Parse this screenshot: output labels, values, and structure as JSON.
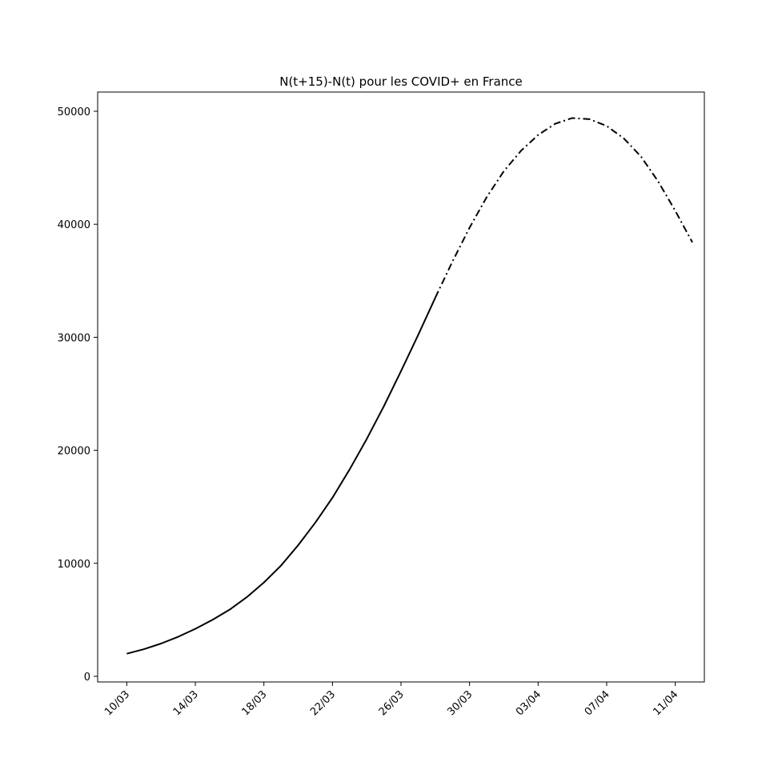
{
  "chart_data": {
    "type": "line",
    "title": "N(t+15)-N(t) pour les COVID+ en France",
    "xlabel": "",
    "ylabel": "",
    "x_tick_labels": [
      "10/03",
      "14/03",
      "18/03",
      "22/03",
      "26/03",
      "30/03",
      "03/04",
      "07/04",
      "11/04"
    ],
    "y_ticks": [
      0,
      10000,
      20000,
      30000,
      40000,
      50000
    ],
    "ylim": [
      -500,
      51700
    ],
    "xlim": [
      "08/03",
      "13/04"
    ],
    "grid": false,
    "series": [
      {
        "style": "solid",
        "color": "#000000",
        "x": [
          "10/03",
          "11/03",
          "12/03",
          "13/03",
          "14/03",
          "15/03",
          "16/03",
          "17/03",
          "18/03",
          "19/03",
          "20/03",
          "21/03",
          "22/03",
          "23/03",
          "24/03",
          "25/03",
          "26/03",
          "27/03",
          "28/03"
        ],
        "values": [
          2000,
          2400,
          2900,
          3500,
          4200,
          5000,
          5900,
          7000,
          8300,
          9800,
          11600,
          13600,
          15800,
          18300,
          21000,
          23900,
          27000,
          30200,
          33500
        ]
      },
      {
        "style": "dashdot",
        "color": "#000000",
        "x": [
          "28/03",
          "29/03",
          "30/03",
          "31/03",
          "01/04",
          "02/04",
          "03/04",
          "04/04",
          "05/04",
          "06/04",
          "07/04",
          "08/04",
          "09/04",
          "10/04",
          "11/04",
          "12/04"
        ],
        "values": [
          33500,
          36700,
          39700,
          42400,
          44700,
          46500,
          47900,
          48900,
          49400,
          49300,
          48700,
          47600,
          46000,
          43800,
          41200,
          38400
        ]
      }
    ]
  }
}
